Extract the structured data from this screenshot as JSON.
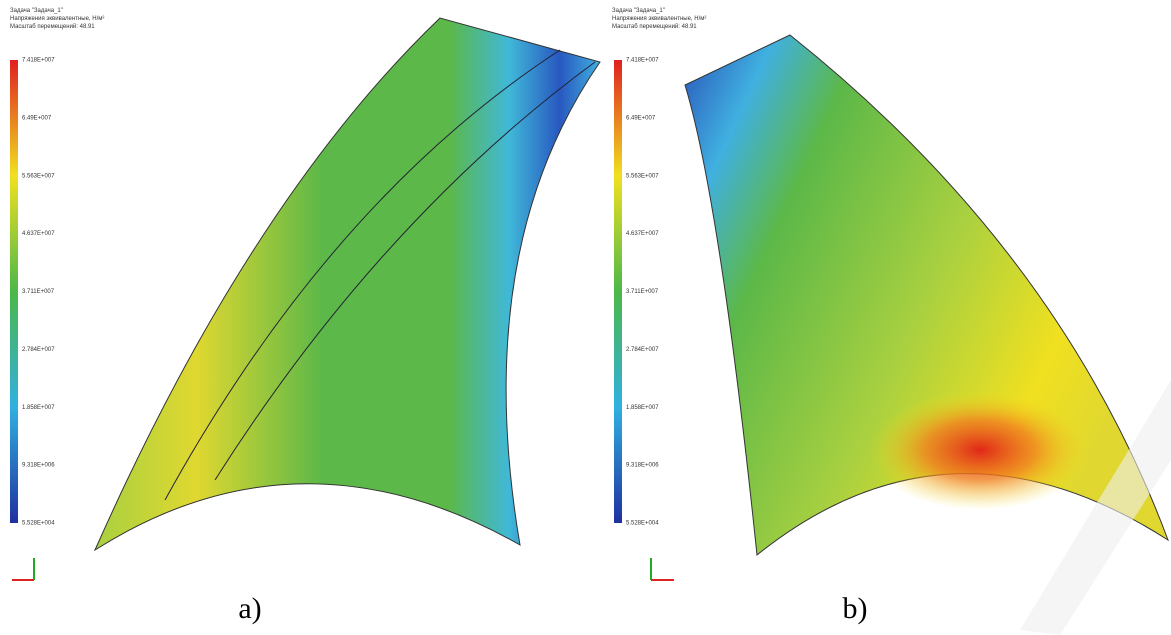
{
  "panels": [
    {
      "header": [
        "Задача \"Задача_1\"",
        "Напряжения эквивалентные, Н/м²",
        "Масштаб перемещений: 48.91"
      ],
      "legend": [
        "7.418E+007",
        "6.49E+007",
        "5.563E+007",
        "4.637E+007",
        "3.711E+007",
        "2.784E+007",
        "1.858E+007",
        "9.318E+006",
        "5.528E+004"
      ],
      "caption": "a)"
    },
    {
      "header": [
        "Задача \"Задача_1\"",
        "Напряжения эквивалентные, Н/м²",
        "Масштаб перемещений: 48.91"
      ],
      "legend": [
        "7.418E+007",
        "6.49E+007",
        "5.563E+007",
        "4.637E+007",
        "3.711E+007",
        "2.784E+007",
        "1.858E+007",
        "9.318E+006",
        "5.528E+004"
      ],
      "caption": "b)"
    }
  ]
}
